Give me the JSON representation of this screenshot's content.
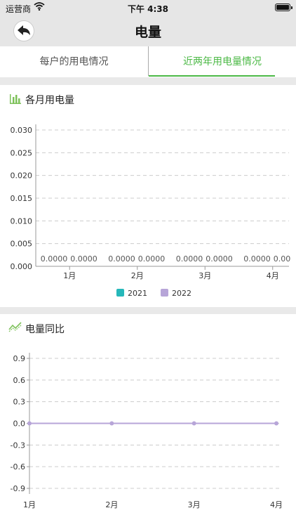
{
  "status_bar": {
    "carrier": "运营商",
    "time": "下午 4:38"
  },
  "nav": {
    "title": "电量",
    "back_icon": "back-arrow-icon"
  },
  "tabs": [
    {
      "label": "每户的用电情况",
      "active": false
    },
    {
      "label": "近两年用电量情况",
      "active": true
    }
  ],
  "colors": {
    "accent": "#4cb946",
    "series_2021": "#26b8ba",
    "series_2022": "#b7a5d8",
    "line_series": "#b7a5d8",
    "grid": "#cccccc"
  },
  "monthly_chart": {
    "section_title": "各月用电量",
    "icon": "bar-chart-icon",
    "chart_data": {
      "type": "bar",
      "categories": [
        "1月",
        "2月",
        "3月",
        "4月"
      ],
      "series": [
        {
          "name": "2021",
          "values": [
            0,
            0,
            0,
            0
          ]
        },
        {
          "name": "2022",
          "values": [
            0,
            0,
            0,
            0
          ]
        }
      ],
      "data_labels": [
        [
          "0.0000",
          "0.0000"
        ],
        [
          "0.0000",
          "0.0000"
        ],
        [
          "0.0000",
          "0.0000"
        ],
        [
          "0.0000",
          "0.00"
        ]
      ],
      "y_ticks": [
        "0.000",
        "0.005",
        "0.010",
        "0.015",
        "0.020",
        "0.025",
        "0.030"
      ],
      "ylim": [
        0,
        0.03
      ],
      "grid": true,
      "legend_position": "bottom"
    }
  },
  "yoy_chart": {
    "section_title": "电量同比",
    "icon": "line-chart-icon",
    "chart_data": {
      "type": "line",
      "categories": [
        "1月",
        "2月",
        "3月",
        "4月"
      ],
      "series": [
        {
          "values": [
            0,
            0,
            0,
            0
          ]
        }
      ],
      "y_ticks": [
        "0.9",
        "0.6",
        "0.3",
        "0.0",
        "-0.3",
        "-0.6",
        "-0.9"
      ],
      "ylim": [
        -0.9,
        0.9
      ],
      "grid": true
    }
  }
}
